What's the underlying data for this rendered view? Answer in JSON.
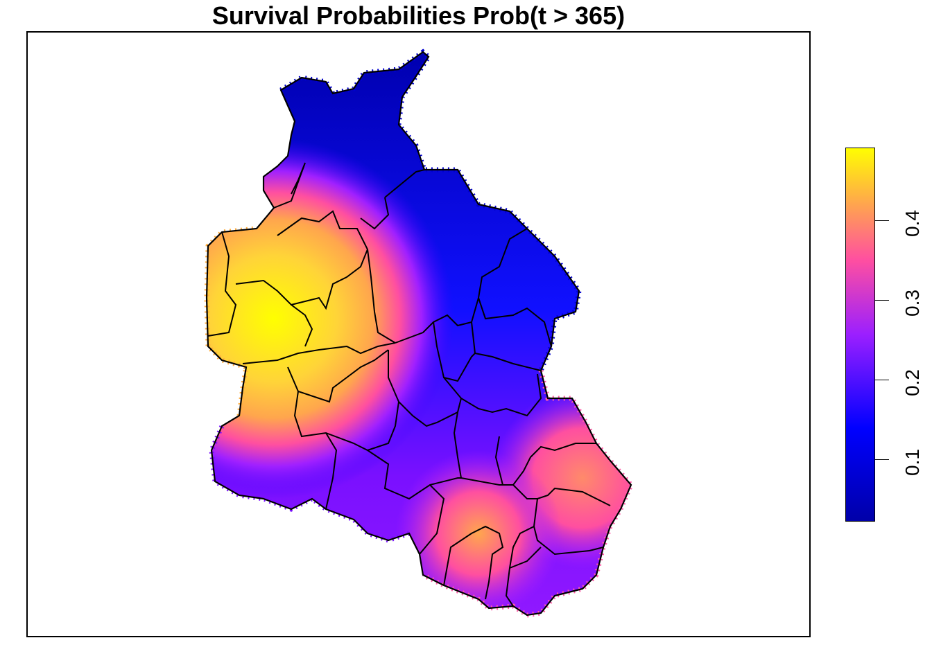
{
  "title": "Survival Probabilities Prob(t > 365)",
  "legend": {
    "tick_labels": [
      "0.1",
      "0.2",
      "0.3",
      "0.4"
    ],
    "range": [
      0.02,
      0.49
    ],
    "colors": {
      "low": "#0000a8",
      "mid_low": "#0000ff",
      "mid": "#9b1fff",
      "mid_high": "#ff4fa0",
      "high_mid": "#ffa64d",
      "high": "#ffff00"
    }
  },
  "map": {
    "regions_outline_color": "#000000",
    "hotspots": [
      {
        "name": "west",
        "value": 0.49
      },
      {
        "name": "southeast",
        "value": 0.4
      },
      {
        "name": "south",
        "value": 0.42
      },
      {
        "name": "north",
        "value": 0.03
      }
    ]
  }
}
